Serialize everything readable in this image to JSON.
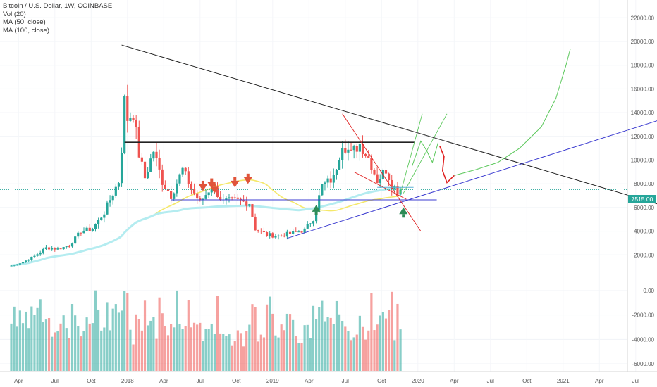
{
  "header": {
    "symbol_line": "Bitcoin / U.S. Dollar, 1W, COINBASE",
    "indicators": [
      "Vol (20)",
      "MA (50, close)",
      "MA (100, close)"
    ]
  },
  "price_badge": "7515.00",
  "colors": {
    "up": "#26a69a",
    "down": "#ef5350",
    "ma50": "#f5e86a",
    "ma100": "#b4ecf0",
    "resistance": "#222222",
    "support": "#3b3bd0",
    "green_path": "#5cc85c",
    "red_path": "#e02020",
    "arrow_down": "#e0543a",
    "arrow_up": "#2e8b57",
    "badge": "#26a69a"
  },
  "chart_data": [
    {
      "type": "candlestick",
      "title": "Bitcoin / U.S. Dollar, 1W, COINBASE",
      "y_axis_ticks": [
        "22000.00",
        "20000.00",
        "18000.00",
        "16000.00",
        "14000.00",
        "12000.00",
        "10000.00",
        "8000.00",
        "6000.00",
        "4000.00",
        "2000.00"
      ],
      "ylim": [
        0,
        23000
      ],
      "x_axis_ticks": [
        "Apr",
        "Jul",
        "Oct",
        "2018",
        "Apr",
        "Jul",
        "Oct",
        "2019",
        "Apr",
        "Jul",
        "Oct",
        "2020",
        "Apr",
        "Jul",
        "Oct",
        "2021",
        "Apr",
        "Jul"
      ],
      "current_price": 7515,
      "series_close": {
        "name": "BTC/USD weekly close",
        "points": [
          [
            2017.2,
            1100
          ],
          [
            2017.28,
            1400
          ],
          [
            2017.36,
            1900
          ],
          [
            2017.44,
            2600
          ],
          [
            2017.52,
            2500
          ],
          [
            2017.6,
            2800
          ],
          [
            2017.68,
            4000
          ],
          [
            2017.76,
            4200
          ],
          [
            2017.84,
            5600
          ],
          [
            2017.9,
            7200
          ],
          [
            2017.94,
            8200
          ],
          [
            2017.96,
            11000
          ],
          [
            2017.98,
            15000
          ],
          [
            2018.0,
            13500
          ],
          [
            2018.04,
            14000
          ],
          [
            2018.08,
            10500
          ],
          [
            2018.12,
            8500
          ],
          [
            2018.18,
            10800
          ],
          [
            2018.24,
            8200
          ],
          [
            2018.3,
            7000
          ],
          [
            2018.38,
            9200
          ],
          [
            2018.44,
            7600
          ],
          [
            2018.5,
            6400
          ],
          [
            2018.58,
            7800
          ],
          [
            2018.66,
            6500
          ],
          [
            2018.74,
            6600
          ],
          [
            2018.84,
            6400
          ],
          [
            2018.88,
            4200
          ],
          [
            2018.96,
            3700
          ],
          [
            2019.04,
            3600
          ],
          [
            2019.12,
            3800
          ],
          [
            2019.22,
            4100
          ],
          [
            2019.28,
            5100
          ],
          [
            2019.34,
            7800
          ],
          [
            2019.42,
            8500
          ],
          [
            2019.48,
            11500
          ],
          [
            2019.54,
            10500
          ],
          [
            2019.6,
            11400
          ],
          [
            2019.66,
            10200
          ],
          [
            2019.72,
            8300
          ],
          [
            2019.78,
            9200
          ],
          [
            2019.82,
            8000
          ],
          [
            2019.86,
            7400
          ],
          [
            2019.88,
            7515
          ]
        ]
      },
      "ma50": {
        "name": "MA (50, close)"
      },
      "ma100": {
        "name": "MA (100, close)"
      }
    },
    {
      "type": "bar",
      "title": "Vol (20)",
      "y_axis_ticks": [
        "0.00",
        "-2000.00",
        "-4000.00",
        "-6000.00"
      ],
      "ylim": [
        -6500,
        500
      ]
    }
  ]
}
